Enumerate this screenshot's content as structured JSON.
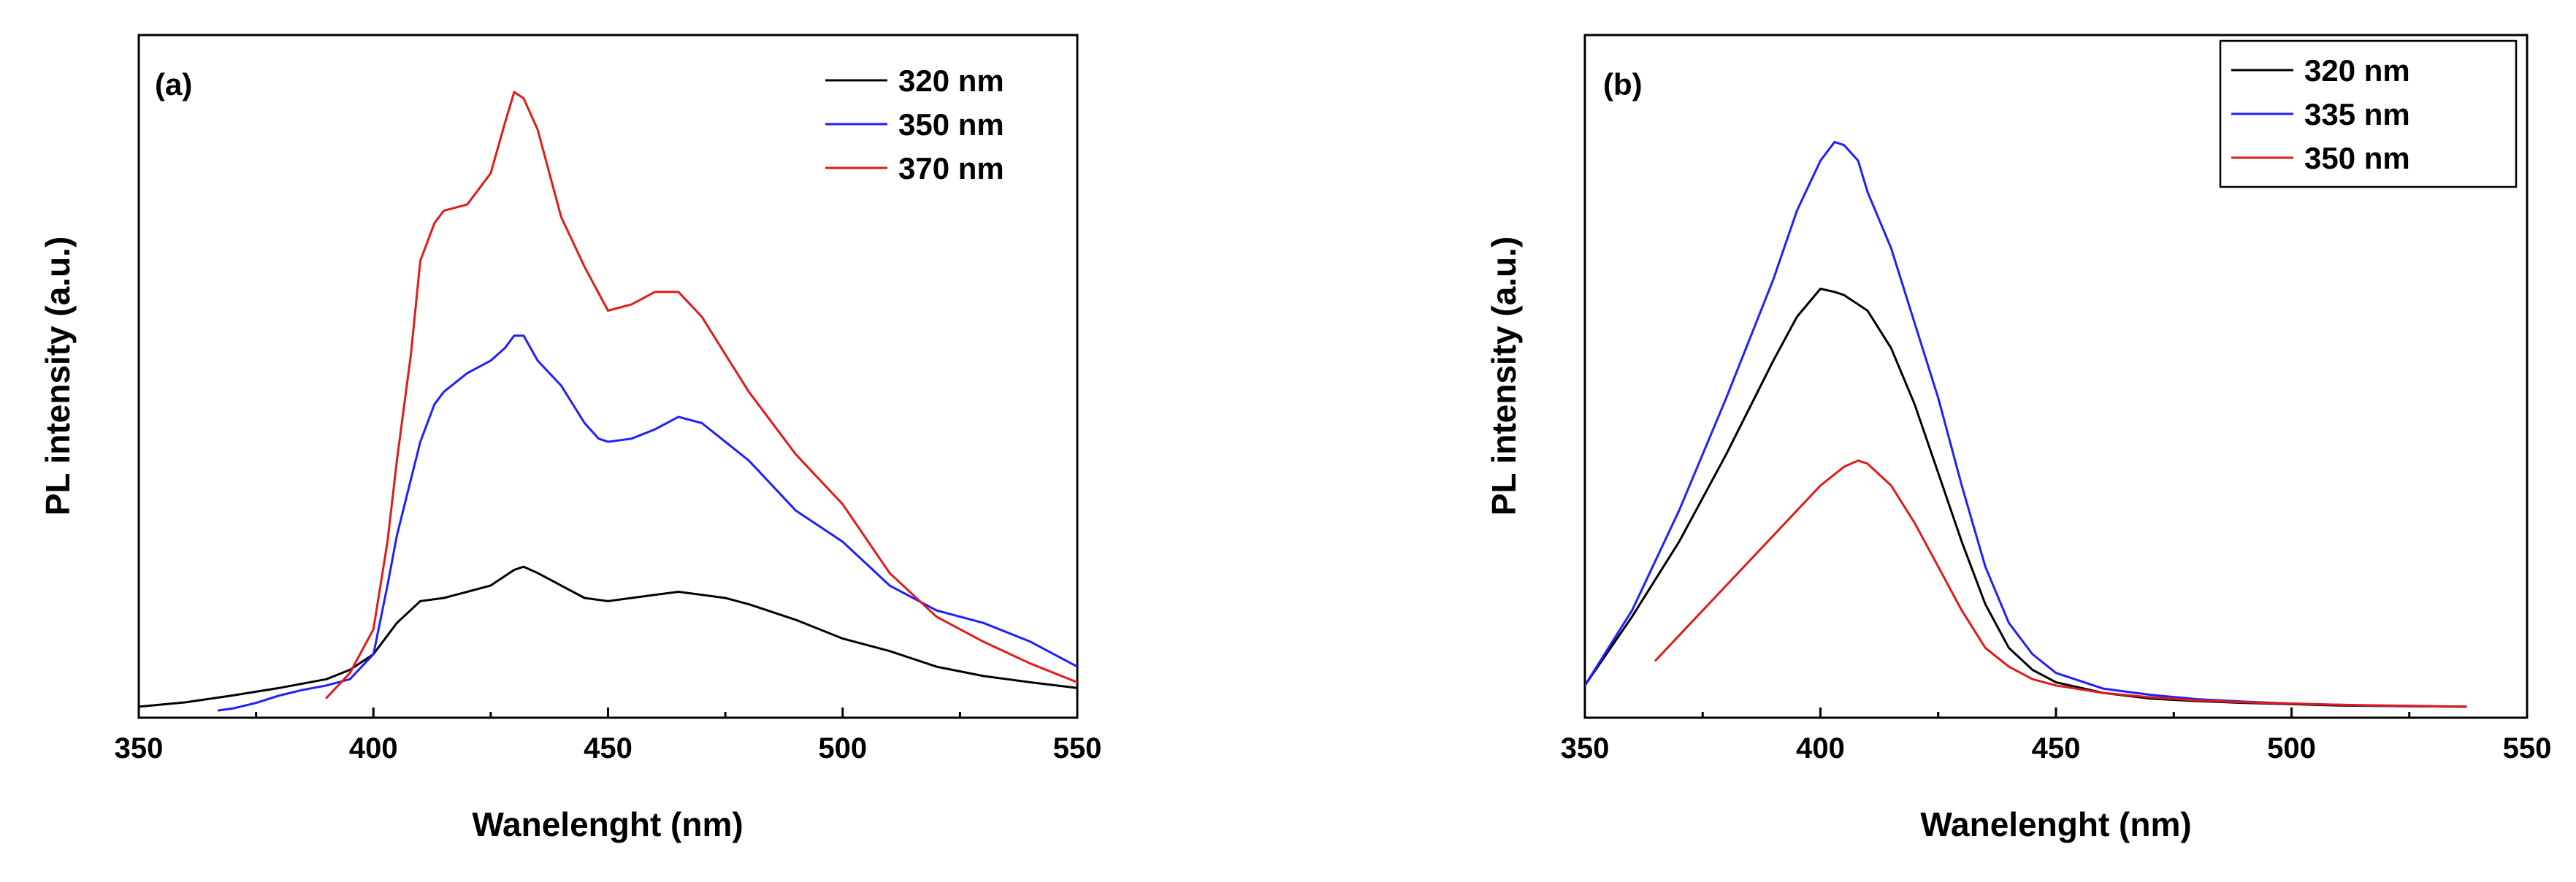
{
  "chart_data": [
    {
      "type": "line",
      "panel_label": "(a)",
      "xlabel": "Wanelenght (nm)",
      "ylabel": "PL intensity (a.u.)",
      "xlim": [
        350,
        550
      ],
      "ylim": [
        0,
        1
      ],
      "xticks": [
        350,
        400,
        450,
        500,
        550
      ],
      "legend_position": "top-right",
      "legend_boxed": false,
      "series": [
        {
          "name": "320 nm",
          "color": "#000000",
          "x": [
            350,
            360,
            370,
            380,
            390,
            395,
            400,
            405,
            410,
            415,
            420,
            425,
            430,
            432,
            435,
            440,
            445,
            450,
            455,
            460,
            465,
            470,
            475,
            480,
            490,
            500,
            510,
            520,
            530,
            540,
            550
          ],
          "y": [
            0.006,
            0.013,
            0.024,
            0.036,
            0.05,
            0.065,
            0.09,
            0.14,
            0.175,
            0.18,
            0.19,
            0.2,
            0.225,
            0.23,
            0.22,
            0.2,
            0.18,
            0.175,
            0.18,
            0.185,
            0.19,
            0.185,
            0.18,
            0.17,
            0.145,
            0.115,
            0.095,
            0.07,
            0.055,
            0.045,
            0.036
          ]
        },
        {
          "name": "350 nm",
          "color": "#1f1fff",
          "x": [
            367,
            370,
            375,
            380,
            385,
            390,
            395,
            400,
            403,
            405,
            408,
            410,
            413,
            415,
            420,
            425,
            428,
            430,
            432,
            435,
            440,
            445,
            448,
            450,
            455,
            460,
            465,
            470,
            475,
            480,
            490,
            500,
            510,
            520,
            530,
            540,
            550
          ],
          "y": [
            0.0,
            0.003,
            0.012,
            0.024,
            0.033,
            0.04,
            0.05,
            0.09,
            0.2,
            0.28,
            0.37,
            0.43,
            0.49,
            0.51,
            0.54,
            0.56,
            0.58,
            0.6,
            0.6,
            0.56,
            0.52,
            0.46,
            0.435,
            0.43,
            0.435,
            0.45,
            0.47,
            0.46,
            0.43,
            0.4,
            0.32,
            0.27,
            0.2,
            0.16,
            0.14,
            0.11,
            0.07
          ]
        },
        {
          "name": "370 nm",
          "color": "#e11a1a",
          "x": [
            390,
            395,
            400,
            403,
            405,
            408,
            410,
            413,
            415,
            420,
            425,
            428,
            430,
            432,
            435,
            440,
            445,
            450,
            455,
            460,
            465,
            470,
            475,
            480,
            490,
            500,
            510,
            520,
            530,
            540,
            550
          ],
          "y": [
            0.02,
            0.06,
            0.13,
            0.27,
            0.4,
            0.57,
            0.72,
            0.78,
            0.8,
            0.81,
            0.86,
            0.94,
            0.99,
            0.98,
            0.93,
            0.79,
            0.71,
            0.64,
            0.65,
            0.67,
            0.67,
            0.63,
            0.57,
            0.51,
            0.41,
            0.33,
            0.22,
            0.15,
            0.11,
            0.075,
            0.045
          ]
        }
      ]
    },
    {
      "type": "line",
      "panel_label": "(b)",
      "xlabel": "Wanelenght (nm)",
      "ylabel": "PL intensity (a.u.)",
      "xlim": [
        350,
        550
      ],
      "ylim": [
        0,
        1
      ],
      "xticks": [
        350,
        400,
        450,
        500,
        550
      ],
      "legend_position": "top-right",
      "legend_boxed": true,
      "series": [
        {
          "name": "320 nm",
          "color": "#000000",
          "x": [
            350,
            360,
            370,
            380,
            390,
            395,
            400,
            403,
            405,
            410,
            415,
            420,
            425,
            430,
            435,
            440,
            445,
            450,
            460,
            470,
            480,
            490,
            500,
            510,
            520,
            537
          ],
          "y": [
            0.04,
            0.15,
            0.27,
            0.41,
            0.56,
            0.63,
            0.675,
            0.67,
            0.665,
            0.64,
            0.58,
            0.49,
            0.38,
            0.27,
            0.17,
            0.1,
            0.065,
            0.045,
            0.028,
            0.019,
            0.015,
            0.012,
            0.01,
            0.008,
            0.007,
            0.006
          ]
        },
        {
          "name": "335 nm",
          "color": "#1f1fff",
          "x": [
            350,
            360,
            370,
            380,
            390,
            395,
            400,
            403,
            405,
            408,
            410,
            415,
            420,
            425,
            430,
            435,
            440,
            445,
            450,
            460,
            470,
            480,
            490,
            500,
            510,
            520,
            537
          ],
          "y": [
            0.04,
            0.16,
            0.32,
            0.5,
            0.69,
            0.8,
            0.88,
            0.91,
            0.905,
            0.88,
            0.83,
            0.74,
            0.62,
            0.5,
            0.36,
            0.23,
            0.14,
            0.09,
            0.06,
            0.035,
            0.025,
            0.018,
            0.014,
            0.011,
            0.009,
            0.007,
            0.006
          ]
        },
        {
          "name": "350 nm",
          "color": "#e11a1a",
          "x": [
            365,
            370,
            380,
            390,
            395,
            400,
            405,
            408,
            410,
            415,
            420,
            425,
            430,
            435,
            440,
            445,
            450,
            460,
            470,
            480,
            490,
            500,
            510,
            520,
            537
          ],
          "y": [
            0.08,
            0.12,
            0.2,
            0.28,
            0.32,
            0.36,
            0.39,
            0.4,
            0.395,
            0.36,
            0.3,
            0.23,
            0.16,
            0.1,
            0.07,
            0.05,
            0.04,
            0.028,
            0.021,
            0.016,
            0.013,
            0.011,
            0.009,
            0.008,
            0.006
          ]
        }
      ]
    }
  ]
}
